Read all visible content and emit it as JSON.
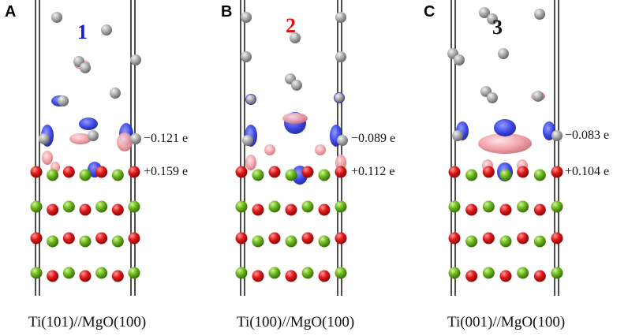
{
  "colors": {
    "ti_atom": "#a8a8a8",
    "o_atom": "#e01818",
    "mg_atom": "#6cb81c",
    "charge_gain": "#2a35e0",
    "charge_loss": "#ee9aa0",
    "cell_line": "#222222"
  },
  "panels": [
    {
      "letter": "A",
      "number": "1",
      "number_color": "#1a1ad0",
      "ti_charge": "−0.121 e",
      "o_charge": "+0.159 e",
      "caption": "Ti(101)//MgO(100)"
    },
    {
      "letter": "B",
      "number": "2",
      "number_color": "#e01010",
      "ti_charge": "−0.089 e",
      "o_charge": "+0.112 e",
      "caption": "Ti(100)//MgO(100)"
    },
    {
      "letter": "C",
      "number": "3",
      "number_color": "#111111",
      "ti_charge": "−0.083 e",
      "o_charge": "+0.104 e",
      "caption": "Ti(001)//MgO(100)"
    }
  ]
}
